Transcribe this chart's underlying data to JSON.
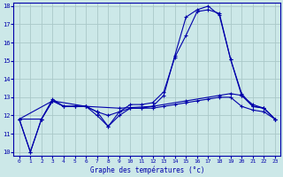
{
  "title": "Graphe des températures (°c)",
  "background_color": "#cce8e8",
  "grid_color": "#aac8c8",
  "line_color": "#0000aa",
  "xlim": [
    -0.5,
    23.5
  ],
  "ylim": [
    9.8,
    18.2
  ],
  "yticks": [
    10,
    11,
    12,
    13,
    14,
    15,
    16,
    17,
    18
  ],
  "xticks": [
    0,
    1,
    2,
    3,
    4,
    5,
    6,
    7,
    8,
    9,
    10,
    11,
    12,
    13,
    14,
    15,
    16,
    17,
    18,
    19,
    20,
    21,
    22,
    23
  ],
  "series": [
    {
      "x": [
        0,
        1,
        2,
        3,
        4,
        5,
        6,
        7,
        8,
        9,
        10,
        11,
        12,
        13,
        14,
        15,
        16,
        17,
        18,
        19,
        20,
        21,
        22,
        23
      ],
      "y": [
        11.8,
        10.0,
        11.8,
        12.8,
        12.5,
        12.5,
        12.5,
        12.0,
        11.4,
        12.0,
        12.4,
        12.4,
        12.5,
        13.1,
        15.3,
        17.4,
        17.8,
        18.0,
        17.5,
        15.1,
        13.1,
        12.5,
        12.4,
        11.8
      ]
    },
    {
      "x": [
        0,
        1,
        2,
        3,
        4,
        5,
        6,
        7,
        8,
        9,
        10,
        11,
        12,
        13,
        14,
        15,
        16,
        17,
        18,
        19,
        20,
        21,
        22,
        23
      ],
      "y": [
        11.8,
        10.0,
        11.8,
        12.9,
        12.5,
        12.5,
        12.5,
        12.2,
        11.4,
        12.2,
        12.6,
        12.6,
        12.7,
        13.3,
        15.2,
        16.4,
        17.7,
        17.8,
        17.6,
        15.1,
        13.2,
        12.5,
        12.4,
        11.8
      ]
    },
    {
      "x": [
        0,
        2,
        3,
        4,
        5,
        6,
        7,
        8,
        9,
        10,
        11,
        12,
        13,
        14,
        15,
        16,
        17,
        18,
        19,
        20,
        21,
        22,
        23
      ],
      "y": [
        11.8,
        11.8,
        12.8,
        12.5,
        12.5,
        12.5,
        12.2,
        12.0,
        12.2,
        12.4,
        12.4,
        12.4,
        12.5,
        12.6,
        12.7,
        12.8,
        12.9,
        13.0,
        13.0,
        12.5,
        12.3,
        12.2,
        11.8
      ]
    },
    {
      "x": [
        0,
        3,
        6,
        9,
        12,
        15,
        18,
        19,
        20,
        21,
        22,
        23
      ],
      "y": [
        11.8,
        12.8,
        12.5,
        12.4,
        12.5,
        12.8,
        13.1,
        13.2,
        13.1,
        12.6,
        12.4,
        11.8
      ]
    }
  ]
}
